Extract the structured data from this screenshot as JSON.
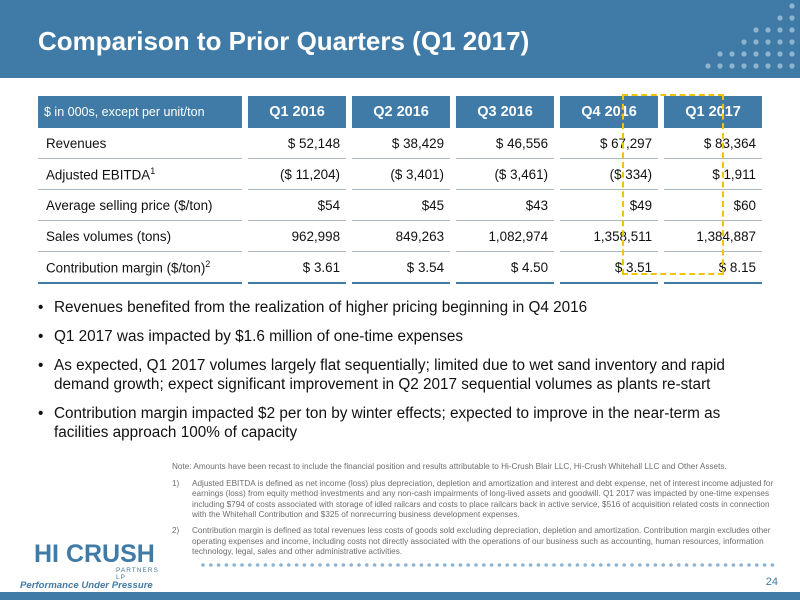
{
  "title": "Comparison to Prior Quarters (Q1 2017)",
  "table": {
    "unit_label": "$ in 000s, except per unit/ton",
    "columns": [
      "Q1 2016",
      "Q2 2016",
      "Q3 2016",
      "Q4 2016",
      "Q1 2017"
    ],
    "highlighted_column": "Q1 2017",
    "rows": [
      {
        "label": "Revenues",
        "sup": "",
        "values": [
          "$ 52,148",
          "$ 38,429",
          "$ 46,556",
          "$ 67,297",
          "$ 83,364"
        ]
      },
      {
        "label": "Adjusted EBITDA",
        "sup": "1",
        "values": [
          "($ 11,204)",
          "($ 3,401)",
          "($ 3,461)",
          "($ 334)",
          "$ 1,911"
        ]
      },
      {
        "label": "Average selling price ($/ton)",
        "sup": "",
        "values": [
          "$54",
          "$45",
          "$43",
          "$49",
          "$60"
        ]
      },
      {
        "label": "Sales volumes (tons)",
        "sup": "",
        "values": [
          "962,998",
          "849,263",
          "1,082,974",
          "1,358,511",
          "1,384,887"
        ]
      },
      {
        "label": "Contribution margin ($/ton)",
        "sup": "2",
        "values": [
          "$ 3.61",
          "$ 3.54",
          "$ 4.50",
          "$ 3.51",
          "$ 8.15"
        ]
      }
    ]
  },
  "bullets": [
    "Revenues benefited from the realization of higher pricing beginning in Q4 2016",
    "Q1 2017 was impacted by $1.6 million of one-time expenses",
    "As expected, Q1 2017 volumes largely flat sequentially; limited due to wet sand inventory and rapid demand growth; expect significant improvement in Q2 2017 sequential volumes as plants re-start",
    "Contribution margin impacted $2 per ton by winter effects; expected to improve in the near-term as facilities approach 100% of capacity"
  ],
  "bullet_symbol": "•",
  "notes": {
    "intro": "Note: Amounts have been recast to include the financial position and results attributable to Hi-Crush Blair LLC, Hi-Crush Whitehall LLC and Other Assets.",
    "items": [
      {
        "num": "1)",
        "text": "Adjusted EBITDA is defined as net income (loss) plus depreciation, depletion and amortization and interest and debt expense, net of interest income adjusted for earnings (loss) from equity method investments and any non-cash impairments of long-lived assets and goodwill. Q1 2017 was impacted by one-time expenses including $794 of costs associated with storage of idled railcars and costs to place railcars back in active service, $516 of acquisition related costs in connection with the Whitehall Contribution and $325 of nonrecurring business development expenses."
      },
      {
        "num": "2)",
        "text": "Contribution margin is defined as total revenues less costs of goods sold excluding depreciation, depletion and amortization. Contribution margin excludes other operating expenses and income, including costs not directly associated with the operations of our business such as accounting, human resources, information technology, legal, sales and other administrative activities."
      }
    ]
  },
  "logo": {
    "brand": "HI CRUSH",
    "sub": "PARTNERS LP",
    "tagline": "Performance Under Pressure"
  },
  "page_number": "24",
  "colors": {
    "brand_blue": "#3f7ba6",
    "highlight": "#f2c300"
  }
}
